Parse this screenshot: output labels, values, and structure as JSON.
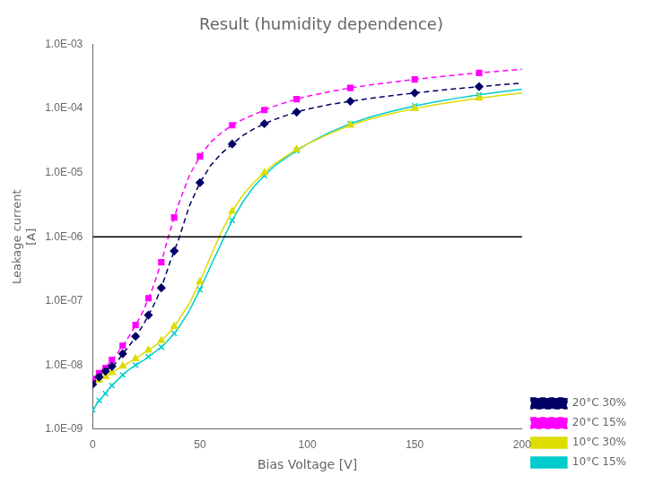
{
  "chart_data": {
    "type": "line",
    "title": "Result (humidity dependence)",
    "x_label": "Bias Voltage [V]",
    "y_label": "Leakage current\n[A]",
    "log": "y",
    "xlim": [
      0,
      200
    ],
    "xticks": [
      0,
      50,
      100,
      150,
      200
    ],
    "ylim": [
      1e-09,
      0.001
    ],
    "yticks": [
      {
        "value": 1e-09,
        "label": "1.0E-09"
      },
      {
        "value": 1e-08,
        "label": "1.0E-08"
      },
      {
        "value": 1e-07,
        "label": "1.0E-07"
      },
      {
        "value": 1e-06,
        "label": "1.0E-06"
      },
      {
        "value": 1e-05,
        "label": "1.0E-05"
      },
      {
        "value": 0.0001,
        "label": "1.0E-04"
      },
      {
        "value": 0.001,
        "label": "1.0E-03"
      }
    ],
    "grid": false,
    "legend": "lower right",
    "series": [
      {
        "name": "20°C 30%",
        "color": "#000066",
        "marker": "diamond",
        "line_style": "dashed",
        "x": [
          0,
          1,
          2,
          3,
          4,
          5,
          6,
          7,
          8,
          9,
          10,
          12,
          14,
          16,
          18,
          20,
          22,
          24,
          26,
          28,
          30,
          32,
          34,
          36,
          38,
          40,
          45,
          50,
          55,
          60,
          65,
          70,
          75,
          80,
          85,
          90,
          95,
          100,
          110,
          120,
          130,
          140,
          150,
          160,
          170,
          180,
          190,
          200
        ],
        "values": [
          5e-09,
          5.5e-09,
          6e-09,
          6.5e-09,
          7e-09,
          7.5e-09,
          8e-09,
          8.5e-09,
          9e-09,
          9.5e-09,
          1e-08,
          1.2e-08,
          1.5e-08,
          1.8e-08,
          2.2e-08,
          2.8e-08,
          3.5e-08,
          4.5e-08,
          6e-08,
          8e-08,
          1.1e-07,
          1.6e-07,
          2.5e-07,
          4e-07,
          6e-07,
          9e-07,
          3e-06,
          7e-06,
          1.3e-05,
          2e-05,
          2.8e-05,
          3.8e-05,
          4.8e-05,
          5.8e-05,
          6.8e-05,
          7.8e-05,
          8.8e-05,
          9.8e-05,
          0.000115,
          0.00013,
          0.000145,
          0.00016,
          0.000175,
          0.00019,
          0.000205,
          0.00022,
          0.000235,
          0.00025
        ]
      },
      {
        "name": "20°C 15%",
        "color": "#ff00ff",
        "marker": "square",
        "line_style": "dashed",
        "x": [
          0,
          1,
          2,
          3,
          4,
          5,
          6,
          7,
          8,
          9,
          10,
          12,
          14,
          16,
          18,
          20,
          22,
          24,
          26,
          28,
          30,
          32,
          34,
          36,
          38,
          40,
          45,
          50,
          55,
          60,
          65,
          70,
          75,
          80,
          85,
          90,
          95,
          100,
          110,
          120,
          130,
          140,
          150,
          160,
          170,
          180,
          190,
          200
        ],
        "values": [
          6e-09,
          6.5e-09,
          7e-09,
          7.5e-09,
          8e-09,
          8.5e-09,
          9e-09,
          1e-08,
          1.1e-08,
          1.2e-08,
          1.3e-08,
          1.6e-08,
          2e-08,
          2.5e-08,
          3.2e-08,
          4.2e-08,
          5.5e-08,
          7.5e-08,
          1.1e-07,
          1.6e-07,
          2.5e-07,
          4e-07,
          7e-07,
          1.2e-06,
          2e-06,
          3.2e-06,
          9e-06,
          1.8e-05,
          3e-05,
          4.2e-05,
          5.5e-05,
          6.8e-05,
          8e-05,
          9.5e-05,
          0.00011,
          0.000125,
          0.00014,
          0.000155,
          0.000182,
          0.00021,
          0.000235,
          0.00026,
          0.000285,
          0.00031,
          0.000335,
          0.00036,
          0.000385,
          0.00041
        ]
      },
      {
        "name": "10°C 30%",
        "color": "#dddd00",
        "marker": "triangle",
        "line_style": "solid",
        "x": [
          0,
          1,
          2,
          3,
          4,
          5,
          6,
          7,
          8,
          9,
          10,
          12,
          14,
          16,
          18,
          20,
          22,
          24,
          26,
          28,
          30,
          32,
          34,
          36,
          38,
          40,
          45,
          50,
          55,
          60,
          65,
          70,
          75,
          80,
          85,
          90,
          95,
          100,
          110,
          120,
          130,
          140,
          150,
          160,
          170,
          180,
          190,
          200
        ],
        "values": [
          5e-09,
          5.2e-09,
          5.5e-09,
          5.8e-09,
          6e-09,
          6.3e-09,
          6.6e-09,
          7e-09,
          7.3e-09,
          7.6e-09,
          8e-09,
          8.8e-09,
          9.6e-09,
          1.05e-08,
          1.15e-08,
          1.25e-08,
          1.4e-08,
          1.55e-08,
          1.7e-08,
          1.9e-08,
          2.1e-08,
          2.4e-08,
          2.8e-08,
          3.3e-08,
          4e-08,
          5e-08,
          9e-08,
          2e-07,
          5e-07,
          1.2e-06,
          2.5e-06,
          4.5e-06,
          7e-06,
          1e-05,
          1.4e-05,
          1.8e-05,
          2.3e-05,
          2.8e-05,
          4e-05,
          5.5e-05,
          7e-05,
          8.5e-05,
          0.0001,
          0.000115,
          0.00013,
          0.000145,
          0.00016,
          0.000175
        ]
      },
      {
        "name": "10°C 15%",
        "color": "#00cccc",
        "marker": "x",
        "line_style": "solid",
        "x": [
          0,
          1,
          2,
          3,
          4,
          5,
          6,
          7,
          8,
          9,
          10,
          12,
          14,
          16,
          18,
          20,
          22,
          24,
          26,
          28,
          30,
          32,
          34,
          36,
          38,
          40,
          45,
          50,
          55,
          60,
          65,
          70,
          75,
          80,
          85,
          90,
          95,
          100,
          110,
          120,
          130,
          140,
          150,
          160,
          170,
          180,
          190,
          200
        ],
        "values": [
          2e-09,
          2.2e-09,
          2.5e-09,
          2.8e-09,
          3e-09,
          3.3e-09,
          3.6e-09,
          4e-09,
          4.4e-09,
          4.8e-09,
          5.2e-09,
          6e-09,
          7e-09,
          8e-09,
          9e-09,
          1e-08,
          1.1e-08,
          1.2e-08,
          1.35e-08,
          1.5e-08,
          1.7e-08,
          1.9e-08,
          2.2e-08,
          2.6e-08,
          3.1e-08,
          3.8e-08,
          7e-08,
          1.5e-07,
          3.5e-07,
          8e-07,
          1.8e-06,
          3.5e-06,
          6e-06,
          9e-06,
          1.3e-05,
          1.7e-05,
          2.2e-05,
          2.8e-05,
          4.2e-05,
          5.8e-05,
          7.5e-05,
          9.2e-05,
          0.00011,
          0.000128,
          0.000146,
          0.000164,
          0.000182,
          0.0002
        ]
      }
    ],
    "hline": {
      "y": 1e-06,
      "color": "#000000"
    }
  }
}
